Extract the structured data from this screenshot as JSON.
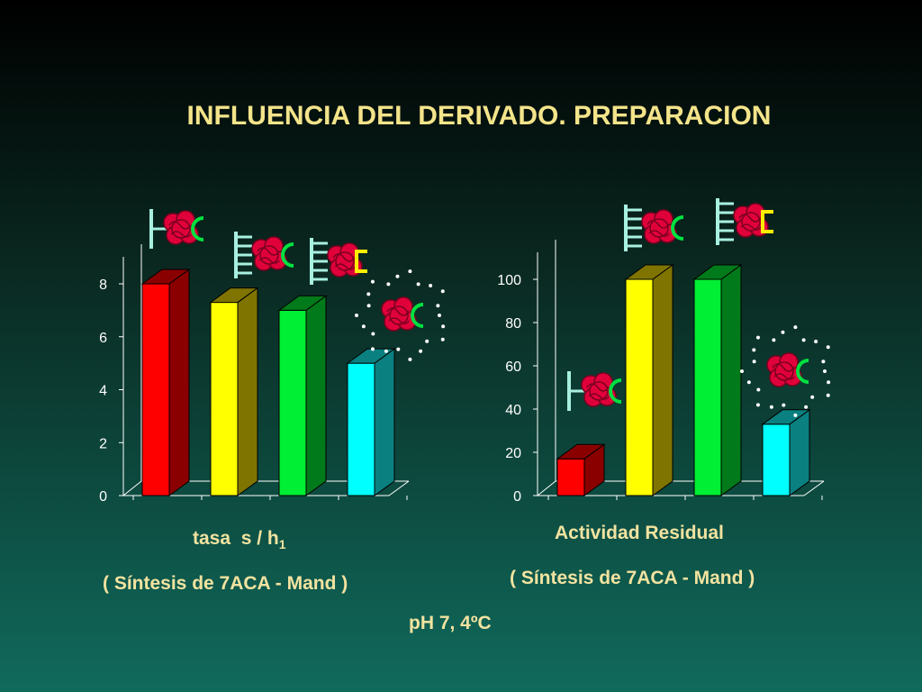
{
  "title": "INFLUENCIA DEL DERIVADO. PREPARACION",
  "colors": {
    "title": "#f4e48a",
    "caption": "#f2e3a0",
    "bars": [
      "#ff0000",
      "#ffff00",
      "#00ee33",
      "#00ffff"
    ],
    "bar_sides": [
      "#8a0000",
      "#7f7400",
      "#007a1a",
      "#0a8080"
    ],
    "enzyme": "#e0003a",
    "support": "#a8f0e0"
  },
  "captions": {
    "left_main": "tasa  s / h",
    "left_sub": "1",
    "left_paren": "( Síntesis de 7ACA - Mand )",
    "right_main": "Actividad Residual",
    "right_paren": "( Síntesis de 7ACA - Mand )",
    "conditions": "pH 7, 4ºC"
  },
  "chart_data": [
    {
      "type": "bar",
      "categories": [
        "",
        "",
        "",
        ""
      ],
      "values": [
        8.0,
        7.3,
        7.0,
        5.0
      ],
      "ticks": [
        0,
        2,
        4,
        6,
        8
      ],
      "ylim": [
        0,
        8
      ],
      "xlabel": "tasa  s / h1",
      "ylabel": ""
    },
    {
      "type": "bar",
      "categories": [
        "",
        "",
        "",
        ""
      ],
      "values": [
        17,
        100,
        100,
        33
      ],
      "ticks": [
        0,
        20,
        40,
        60,
        80,
        100
      ],
      "ylim": [
        0,
        100
      ],
      "xlabel": "Actividad Residual",
      "ylabel": ""
    }
  ],
  "icons": [
    {
      "name": "enzyme-monopoint-icon",
      "chart": 0,
      "bar": 0
    },
    {
      "name": "enzyme-multipoint-icon",
      "chart": 0,
      "bar": 1
    },
    {
      "name": "enzyme-multipoint-bracket-icon",
      "chart": 0,
      "bar": 2
    },
    {
      "name": "enzyme-soluble-dotted-icon",
      "chart": 0,
      "bar": 3
    },
    {
      "name": "enzyme-monopoint-icon",
      "chart": 1,
      "bar": 0
    },
    {
      "name": "enzyme-multipoint-icon",
      "chart": 1,
      "bar": 1
    },
    {
      "name": "enzyme-multipoint-bracket-icon",
      "chart": 1,
      "bar": 2
    },
    {
      "name": "enzyme-soluble-dotted-icon",
      "chart": 1,
      "bar": 3
    }
  ]
}
